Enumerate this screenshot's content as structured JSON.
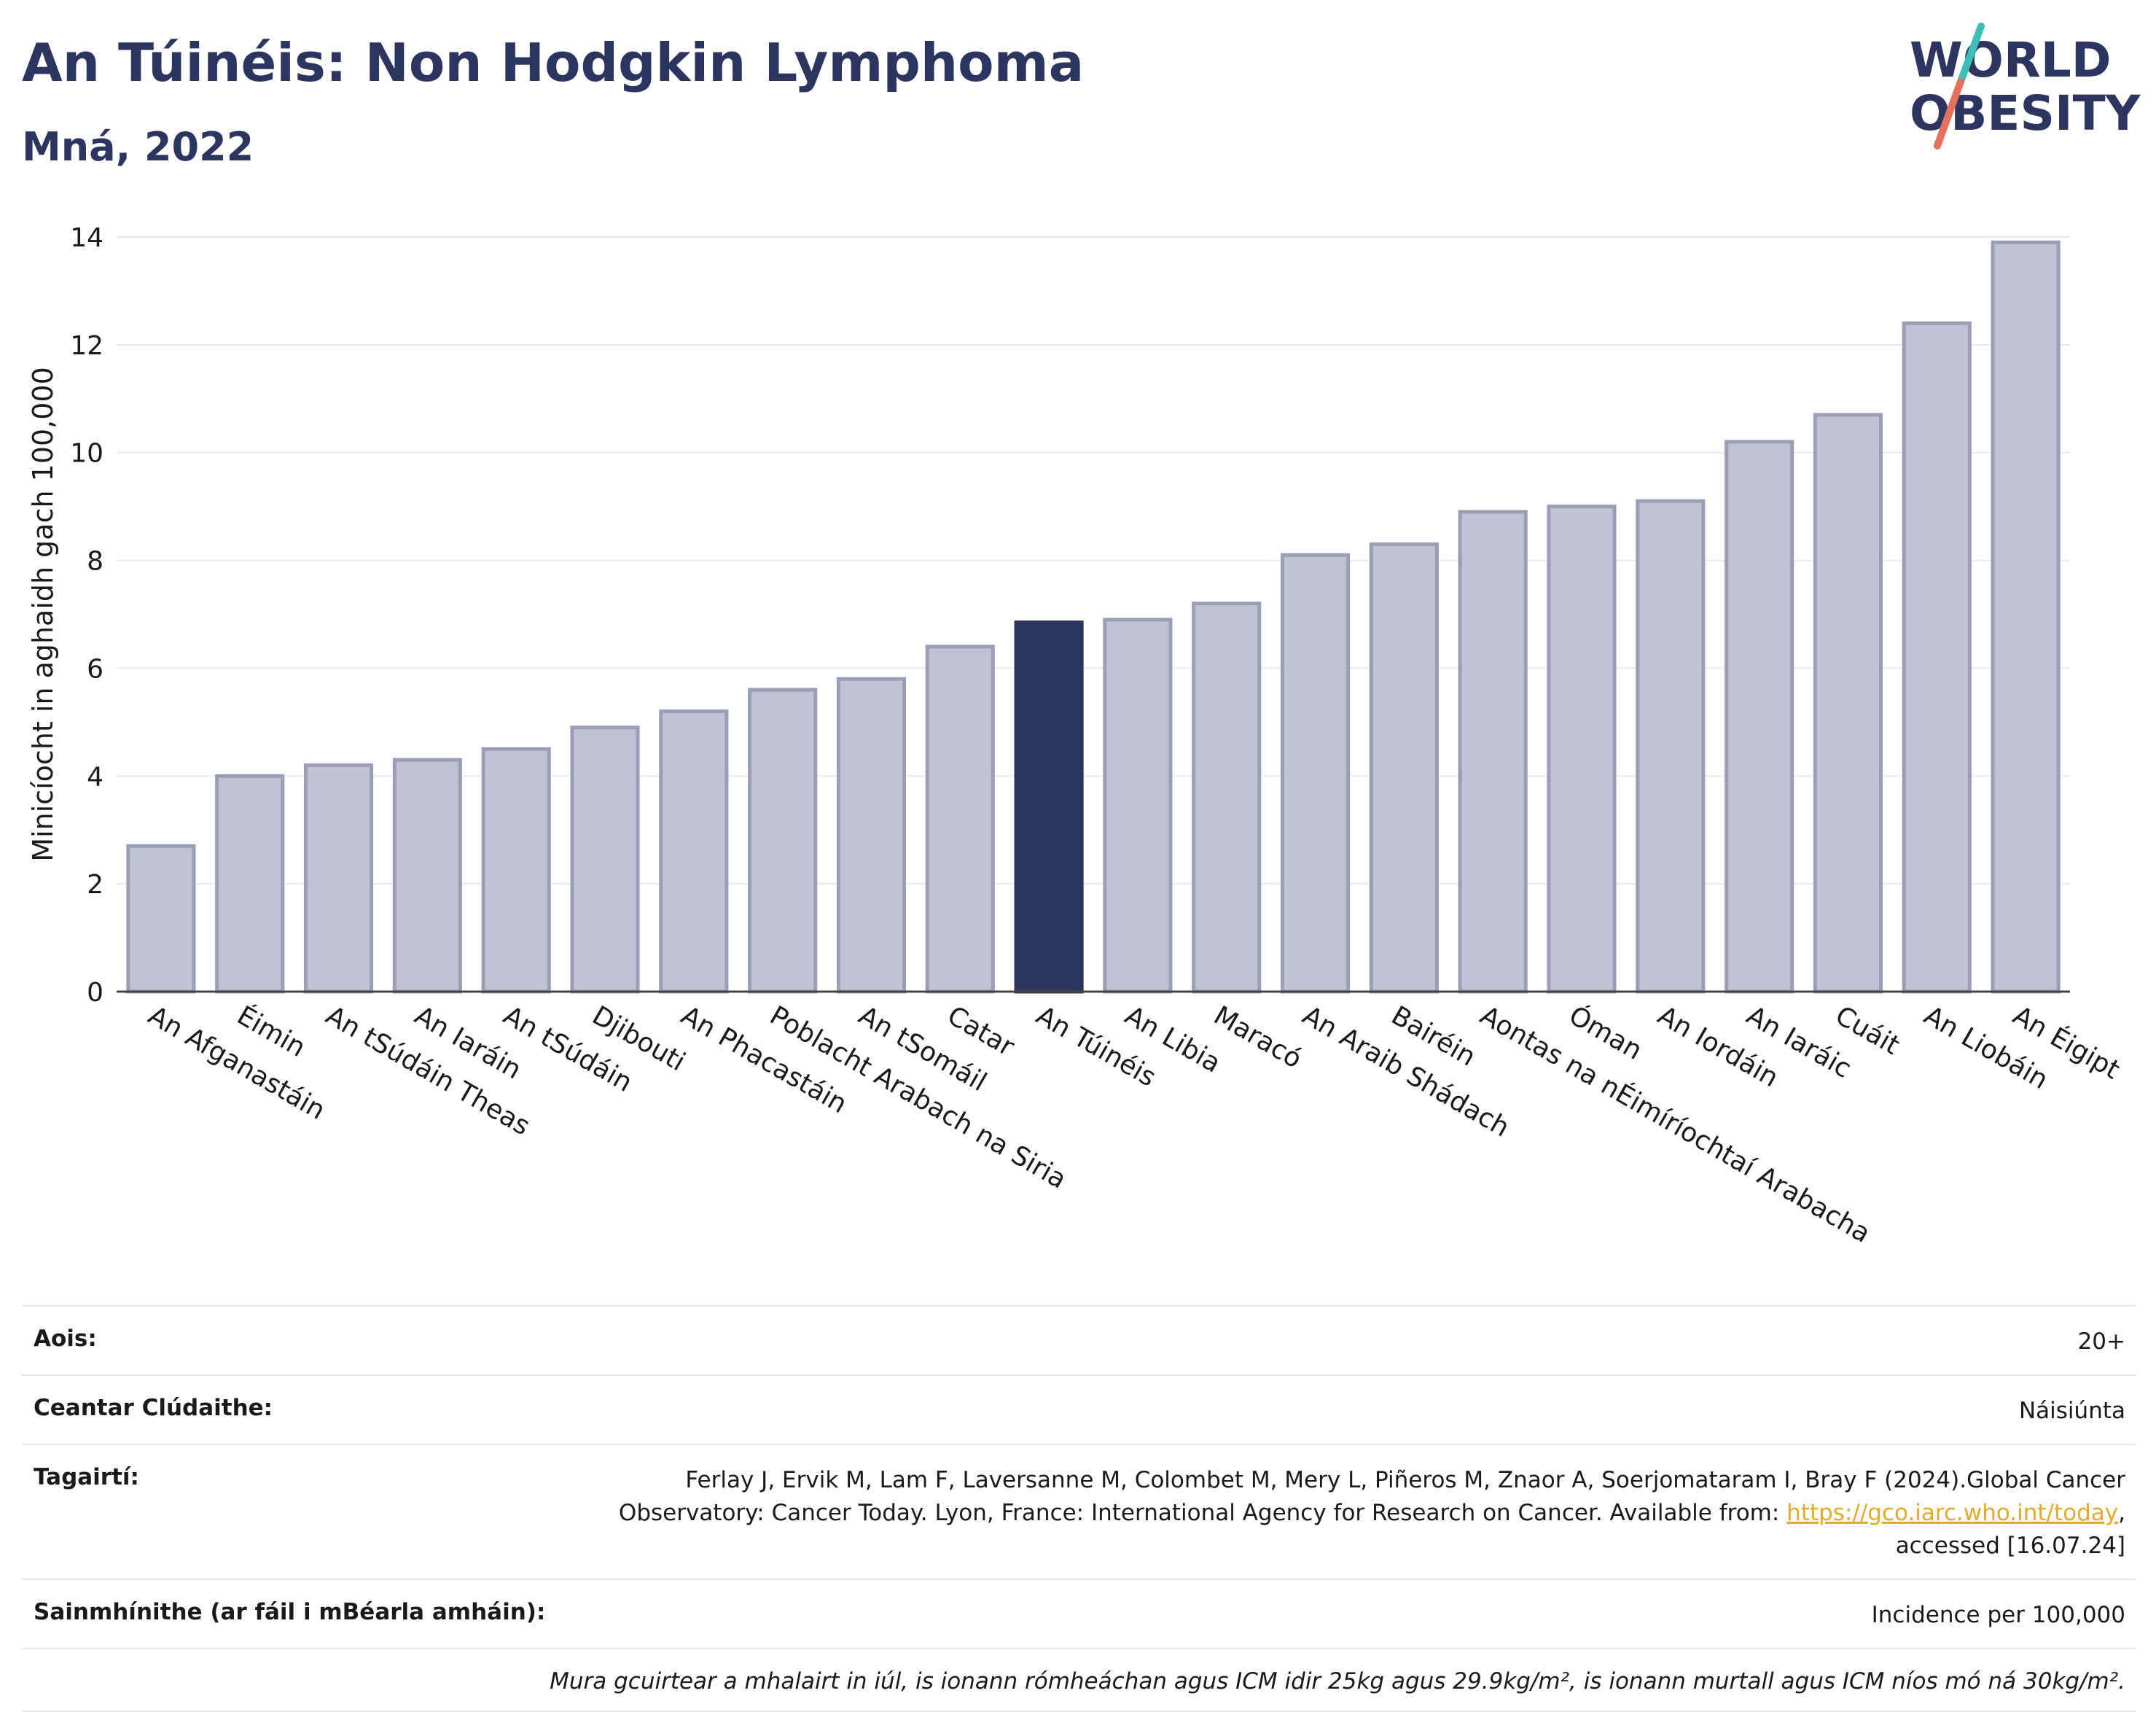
{
  "header": {
    "title": "An Túinéis: Non Hodgkin Lymphoma",
    "subtitle": "Mná, 2022"
  },
  "logo": {
    "line1": "WORLD",
    "line2": "OBESITY",
    "colors": {
      "text": "#2b355f",
      "slash_top": "#3bbfb8",
      "slash_bottom": "#e4715d"
    }
  },
  "colors": {
    "highlight_bar": "#2b355f",
    "bar": "#c0c3d1",
    "bar_border": "#9a9fb8",
    "grid": "#e8eaef",
    "axis_text": "#1a1a1a"
  },
  "chart_data": {
    "type": "bar",
    "title": "An Túinéis: Non Hodgkin Lymphoma",
    "subtitle": "Mná, 2022",
    "xlabel": "",
    "ylabel": "Minicíocht in aghaidh gach 100,000",
    "ylim": [
      0,
      14
    ],
    "yticks": [
      0,
      2,
      4,
      6,
      8,
      10,
      12,
      14
    ],
    "grid": true,
    "highlight": "An Túinéis",
    "categories": [
      "An Afganastáin",
      "Éimin",
      "An tSúdáin Theas",
      "An Iaráin",
      "An tSúdáin",
      "Djibouti",
      "An Phacastáin",
      "Poblacht Arabach na Siria",
      "An tSomáil",
      "Catar",
      "An Túinéis",
      "An Libia",
      "Maracó",
      "An Araib Shádach",
      "Bairéin",
      "Aontas na nÉimíríochtaí Arabacha",
      "Óman",
      "An Iordáin",
      "An Iaráic",
      "Cuáit",
      "An Liobáin",
      "An Éigipt"
    ],
    "values": [
      2.7,
      4.0,
      4.2,
      4.3,
      4.5,
      4.9,
      5.2,
      5.6,
      5.8,
      6.4,
      6.85,
      6.9,
      7.2,
      8.1,
      8.3,
      8.9,
      9.0,
      9.1,
      10.2,
      10.7,
      12.4,
      13.9
    ]
  },
  "details": {
    "age_label": "Aois:",
    "age_value": "20+",
    "area_label": "Ceantar Clúdaithe:",
    "area_value": "Náisiúnta",
    "refs_label": "Tagairtí:",
    "refs_text_1": "Ferlay J, Ervik M, Lam F, Laversanne M, Colombet M, Mery L, Piñeros M, Znaor A, Soerjomataram I, Bray F (2024).Global Cancer",
    "refs_text_2": "Observatory: Cancer Today. Lyon, France: International Agency for Research on Cancer. Available from: ",
    "refs_link": "https://gco.iarc.who.int/today",
    "refs_text_3": ",",
    "refs_text_4": "accessed [16.07.24]",
    "defs_label": "Sainmhínithe (ar fáil i mBéarla amháin):",
    "defs_value": "Incidence per 100,000",
    "note": "Mura gcuirtear a mhalairt in iúl, is ionann rómheáchan agus ICM idir 25kg agus 29.9kg/m², is ionann murtall agus ICM níos mó ná 30kg/m²."
  }
}
